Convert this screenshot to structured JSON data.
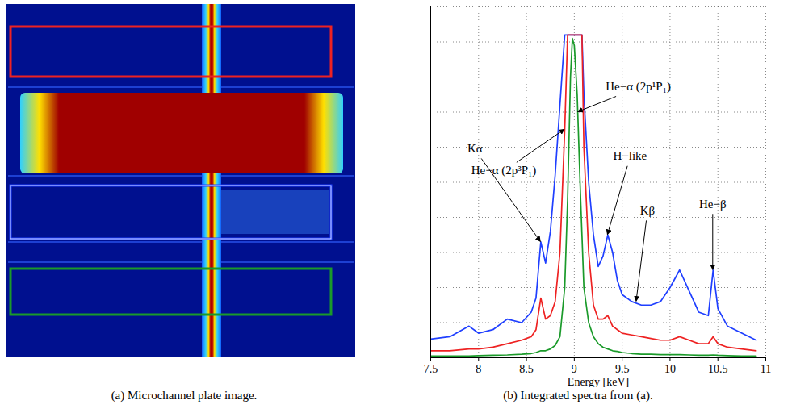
{
  "image": {
    "caption": "(a) Microchannel plate image."
  },
  "chart_data": {
    "type": "line",
    "caption": "(b) Integrated spectra from (a).",
    "x_label": "Energy [keV]",
    "x": [
      7.5,
      7.7,
      7.9,
      8.0,
      8.15,
      8.3,
      8.45,
      8.55,
      8.6,
      8.65,
      8.7,
      8.75,
      8.8,
      8.85,
      8.9,
      8.93,
      8.96,
      8.98,
      9.0,
      9.03,
      9.06,
      9.08,
      9.1,
      9.15,
      9.2,
      9.25,
      9.3,
      9.35,
      9.4,
      9.45,
      9.5,
      9.6,
      9.7,
      9.8,
      9.9,
      10.0,
      10.1,
      10.2,
      10.3,
      10.4,
      10.45,
      10.5,
      10.6,
      10.75,
      10.9
    ],
    "series": [
      {
        "color": "#1f3fff",
        "values": [
          0.053,
          0.06,
          0.09,
          0.07,
          0.08,
          0.11,
          0.1,
          0.13,
          0.17,
          0.33,
          0.27,
          0.36,
          0.52,
          0.72,
          0.92,
          0.92,
          0.92,
          0.92,
          0.92,
          0.92,
          0.92,
          0.92,
          0.75,
          0.5,
          0.35,
          0.26,
          0.29,
          0.35,
          0.3,
          0.22,
          0.18,
          0.16,
          0.15,
          0.15,
          0.16,
          0.2,
          0.25,
          0.19,
          0.13,
          0.12,
          0.25,
          0.14,
          0.09,
          0.07,
          0.05
        ]
      },
      {
        "color": "#ee2222",
        "values": [
          0.02,
          0.02,
          0.025,
          0.025,
          0.03,
          0.04,
          0.05,
          0.06,
          0.08,
          0.17,
          0.11,
          0.12,
          0.16,
          0.3,
          0.65,
          0.92,
          0.92,
          0.92,
          0.92,
          0.92,
          0.92,
          0.92,
          0.6,
          0.3,
          0.15,
          0.11,
          0.11,
          0.12,
          0.09,
          0.08,
          0.07,
          0.065,
          0.06,
          0.055,
          0.05,
          0.05,
          0.06,
          0.05,
          0.04,
          0.04,
          0.06,
          0.04,
          0.03,
          0.025,
          0.02
        ]
      },
      {
        "color": "#1a9a2a",
        "values": [
          0.005,
          0.005,
          0.005,
          0.006,
          0.007,
          0.008,
          0.01,
          0.012,
          0.015,
          0.02,
          0.02,
          0.025,
          0.035,
          0.06,
          0.2,
          0.45,
          0.8,
          0.91,
          0.89,
          0.75,
          0.5,
          0.35,
          0.2,
          0.1,
          0.06,
          0.04,
          0.03,
          0.025,
          0.02,
          0.018,
          0.015,
          0.012,
          0.01,
          0.01,
          0.009,
          0.009,
          0.009,
          0.008,
          0.007,
          0.007,
          0.008,
          0.007,
          0.006,
          0.005,
          0.005
        ]
      }
    ],
    "xlim": [
      7.5,
      11
    ],
    "xticks": [
      7.5,
      8,
      8.5,
      9,
      9.5,
      10,
      10.5,
      11
    ],
    "ylim": [
      0,
      1
    ],
    "yticks": [
      0,
      0.1,
      0.2,
      0.3,
      0.4,
      0.5,
      0.6,
      0.7,
      0.8,
      0.9,
      1
    ],
    "grid": true,
    "tick_labels": "x",
    "annotations": [
      {
        "text": "Kα",
        "x": 8.65,
        "y": 0.33
      },
      {
        "text": "He−α (2p³P₁)",
        "x": 8.9,
        "y": 0.65
      },
      {
        "text": "He−α (2p¹P₁)",
        "x": 9.04,
        "y": 0.7
      },
      {
        "text": "H−like",
        "x": 9.35,
        "y": 0.35
      },
      {
        "text": "Kβ",
        "x": 9.65,
        "y": 0.16
      },
      {
        "text": "He−β",
        "x": 10.45,
        "y": 0.25
      }
    ]
  }
}
